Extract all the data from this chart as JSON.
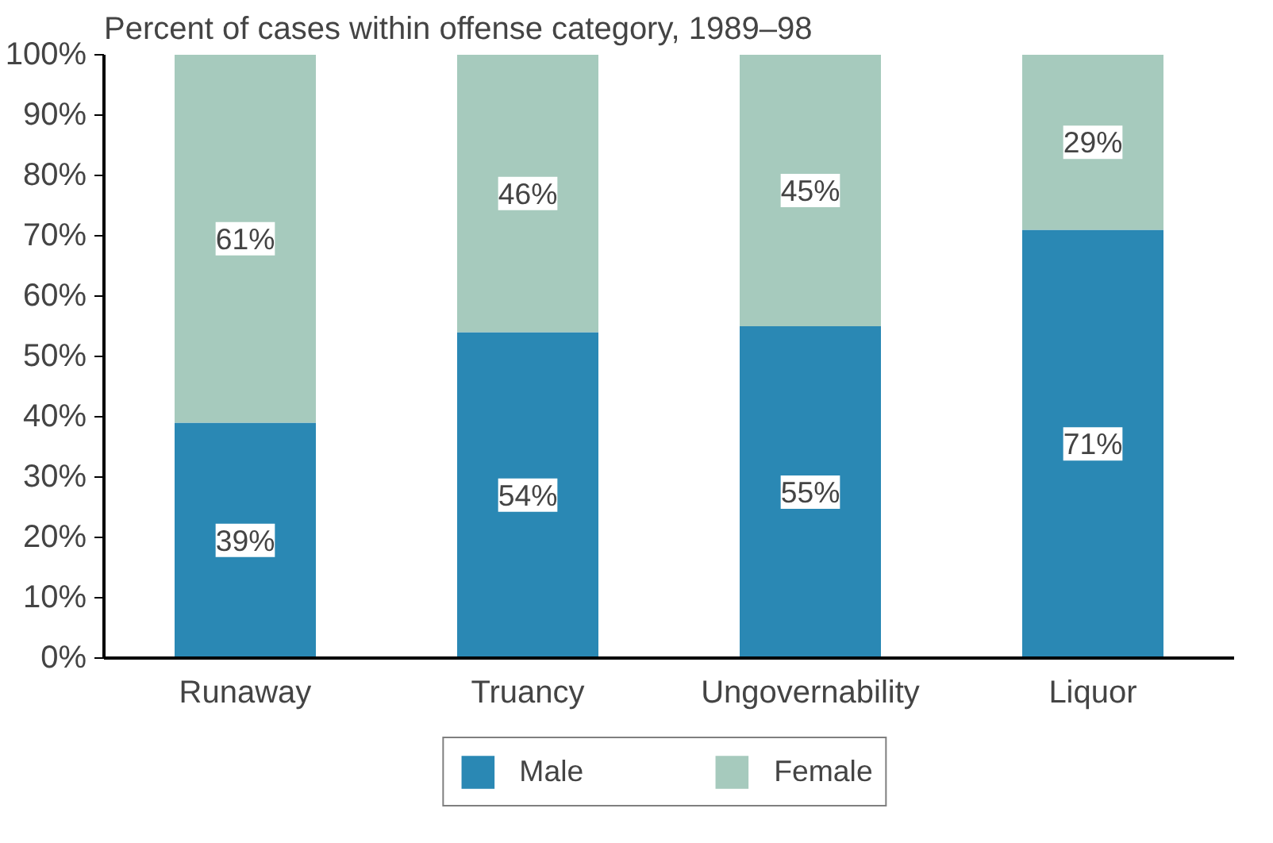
{
  "chart_data": {
    "type": "bar",
    "stacked": true,
    "title": "Percent of cases within offense category, 1989–98",
    "categories": [
      "Runaway",
      "Truancy",
      "Ungovernability",
      "Liquor"
    ],
    "series": [
      {
        "name": "Male",
        "color": "#2a88b4",
        "values": [
          39,
          54,
          55,
          71
        ],
        "value_labels": [
          "39%",
          "54%",
          "55%",
          "71%"
        ]
      },
      {
        "name": "Female",
        "color": "#a6cabd",
        "values": [
          61,
          46,
          45,
          29
        ],
        "value_labels": [
          "61%",
          "46%",
          "45%",
          "29%"
        ]
      }
    ],
    "ylim": [
      0,
      100
    ],
    "yticks": [
      {
        "value": 0,
        "label": "0%"
      },
      {
        "value": 10,
        "label": "10%"
      },
      {
        "value": 20,
        "label": "20%"
      },
      {
        "value": 30,
        "label": "30%"
      },
      {
        "value": 40,
        "label": "40%"
      },
      {
        "value": 50,
        "label": "50%"
      },
      {
        "value": 60,
        "label": "60%"
      },
      {
        "value": 70,
        "label": "70%"
      },
      {
        "value": 80,
        "label": "80%"
      },
      {
        "value": 90,
        "label": "90%"
      },
      {
        "value": 100,
        "label": "100%"
      }
    ],
    "grid": false,
    "legend": "bottom"
  }
}
